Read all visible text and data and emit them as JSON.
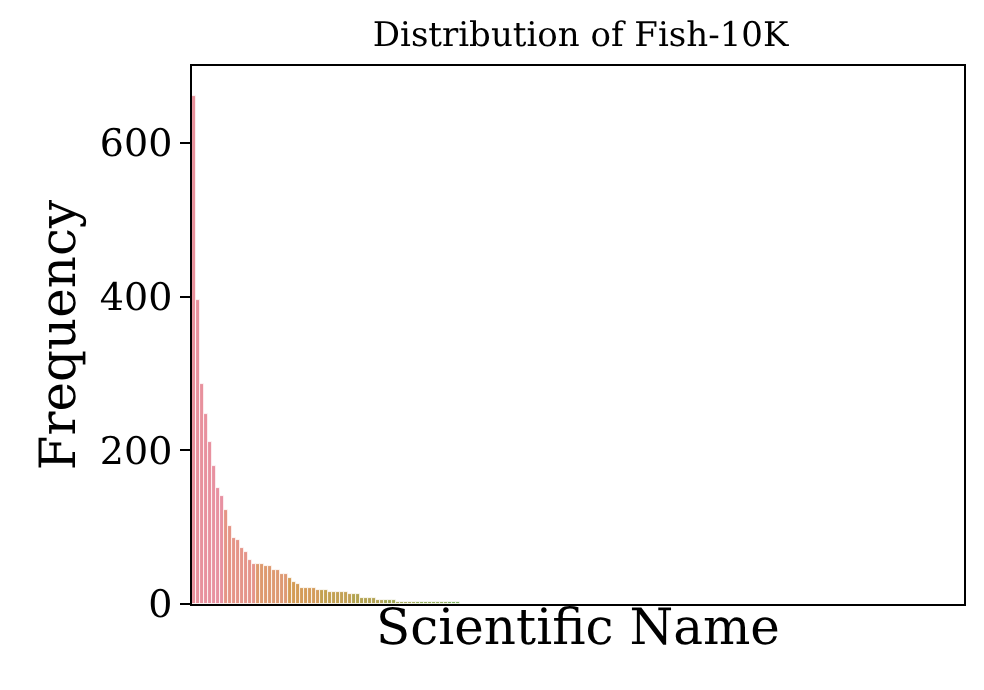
{
  "chart_data": {
    "type": "bar",
    "title": "Distribution of Fish-10K",
    "xlabel": "Scientific Name",
    "ylabel": "Frequency",
    "categories": [
      null,
      null,
      null,
      null,
      null,
      null,
      null,
      null,
      null,
      null,
      null,
      null,
      null,
      null,
      null,
      null,
      null,
      null,
      null,
      null,
      null,
      null,
      null,
      null,
      null,
      null,
      null,
      null,
      null,
      null,
      null,
      null,
      null,
      null,
      null,
      null,
      null,
      null,
      null,
      null,
      null,
      null,
      null,
      null,
      null,
      null,
      null,
      null,
      null,
      null,
      null,
      null,
      null,
      null,
      null,
      null,
      null,
      null,
      null,
      null,
      null,
      null,
      null,
      null,
      null,
      null,
      null,
      null,
      null,
      null,
      null,
      null,
      null,
      null,
      null,
      null,
      null,
      null,
      null,
      null,
      null,
      null,
      null,
      null,
      null,
      null,
      null,
      null,
      null,
      null,
      null,
      null,
      null,
      null,
      null,
      null,
      null,
      null,
      null,
      null,
      null,
      null,
      null,
      null,
      null,
      null,
      null,
      null,
      null,
      null,
      null,
      null,
      null,
      null,
      null,
      null,
      null,
      null,
      null,
      null,
      null,
      null,
      null,
      null,
      null,
      null,
      null,
      null,
      null,
      null,
      null,
      null,
      null,
      null,
      null,
      null,
      null,
      null,
      null,
      null,
      null,
      null,
      null,
      null,
      null,
      null,
      null,
      null,
      null,
      null,
      null,
      null,
      null,
      null,
      null,
      null,
      null,
      null,
      null,
      null,
      null,
      null,
      null,
      null,
      null,
      null,
      null,
      null,
      null,
      null,
      null,
      null,
      null,
      null,
      null,
      null,
      null,
      null,
      null,
      null,
      null,
      null,
      null,
      null,
      null,
      null,
      null,
      null,
      null,
      null,
      null,
      null,
      null
    ],
    "values": [
      662,
      395,
      287,
      248,
      212,
      179,
      150,
      140,
      122,
      101,
      85,
      83,
      73,
      68,
      57,
      52,
      52,
      52,
      49,
      49,
      43,
      43,
      40,
      40,
      35,
      29,
      26,
      22,
      22,
      22,
      22,
      19,
      19,
      19,
      16,
      16,
      15,
      15,
      15,
      12,
      12,
      12,
      9,
      9,
      9,
      9,
      6,
      6,
      6,
      6,
      6,
      3,
      3,
      3,
      3,
      3,
      3,
      3,
      3,
      3,
      3,
      3,
      3,
      3,
      3,
      3,
      3,
      0,
      0,
      0,
      0,
      0,
      0,
      0,
      0,
      0,
      0,
      0,
      0,
      0,
      0,
      0,
      0,
      0,
      0,
      0,
      0,
      0,
      0,
      0,
      0,
      0,
      0,
      0,
      0,
      0,
      0,
      0,
      0,
      0,
      0,
      0,
      0,
      0,
      0,
      0,
      0,
      0,
      0,
      0,
      0,
      0,
      0,
      0,
      0,
      0,
      0,
      0,
      0,
      0,
      0,
      0,
      0,
      0,
      0,
      0,
      0,
      0,
      0,
      0,
      0,
      0,
      0,
      0,
      0,
      0,
      0,
      0,
      0,
      0,
      0,
      0,
      0,
      0,
      0,
      0,
      0,
      0,
      0,
      0,
      0,
      0,
      0,
      0,
      0,
      0,
      0,
      0,
      0,
      0,
      0,
      0,
      0,
      0,
      0,
      0,
      0,
      0,
      0,
      0,
      0,
      0,
      0,
      0,
      0,
      0,
      0,
      0,
      0,
      0,
      0,
      0,
      0,
      0,
      0,
      0,
      0,
      0,
      0,
      0,
      0,
      0,
      0
    ],
    "colors": [
      "#e8919b",
      "#e8919c",
      "#e8919d",
      "#e8919e",
      "#e8919f",
      "#e891a0",
      "#e891a1",
      "#e891a2",
      "#e59585",
      "#e59586",
      "#e59587",
      "#e59588",
      "#e59589",
      "#e5958a",
      "#e5958b",
      "#e5958c",
      "#de9a6e",
      "#de9a6f",
      "#de9a70",
      "#de9a71",
      "#de9a72",
      "#de9a73",
      "#de9a74",
      "#de9a75",
      "#d49c55",
      "#d49c56",
      "#d49c57",
      "#d49c58",
      "#d49c59",
      "#d49c5a",
      "#d49c5b",
      "#d49c5c",
      "#c3a150",
      "#c3a151",
      "#c3a152",
      "#c3a153",
      "#c3a154",
      "#c3a155",
      "#c3a156",
      "#c3a157",
      "#b3a34f",
      "#b3a350",
      "#b3a351",
      "#b3a352",
      "#b3a353",
      "#b3a354",
      "#b3a355",
      "#b3a356",
      "#a2a64f",
      "#a2a650",
      "#a2a651",
      "#a2a652",
      "#a2a653",
      "#a2a654",
      "#a2a655",
      "#a2a656",
      "#8ea94f",
      "#8ea950",
      "#8ea951",
      "#8ea952",
      "#8ea953",
      "#8ea954",
      "#8ea955",
      "#8ea956",
      "#74ab54",
      "#74ab55",
      "#74ab56",
      "#74ab57",
      "#74ab58",
      "#74ab59",
      "#74ab5a",
      "#74ab5b",
      "#58ad6b",
      "#58ad6c",
      "#58ad6d",
      "#58ad6e",
      "#58ad6f",
      "#58ad70",
      "#58ad71",
      "#58ad72",
      "#55ac86",
      "#55ac87",
      "#55ac88",
      "#55ac89",
      "#55ac8a",
      "#55ac8b",
      "#55ac8c",
      "#55ac8d",
      "#56ab98",
      "#56ab99",
      "#56ab9a",
      "#56ab9b",
      "#56ab9c",
      "#56ab9d",
      "#56ab9e",
      "#56ab9f",
      "#57aaa6",
      "#57aaa7",
      "#57aaa8",
      "#57aaa9",
      "#57aaaa",
      "#57aaab",
      "#57aaac",
      "#57aaad",
      "#58a9b4",
      "#58a9b5",
      "#58a9b6",
      "#58a9b7",
      "#58a9b8",
      "#58a9b9",
      "#58a9ba",
      "#58a9bb",
      "#5ba6c5",
      "#5ba6c6",
      "#5ba6c7",
      "#5ba6c8",
      "#5ba6c9",
      "#5ba6ca",
      "#5ba6cb",
      "#5ba6cc",
      "#67a1d8",
      "#67a1d9",
      "#67a1da",
      "#67a1db",
      "#67a1dc",
      "#67a1dd",
      "#67a1de",
      "#67a1df",
      "#8499df",
      "#8499e0",
      "#8499e1",
      "#8499e2",
      "#8499e3",
      "#8499e4",
      "#8499e5",
      "#8499e6",
      "#a393e0",
      "#a393e1",
      "#a393e2",
      "#a393e3",
      "#a393e4",
      "#a393e5",
      "#a393e6",
      "#a393e7",
      "#bb8de0",
      "#bb8de1",
      "#bb8de2",
      "#bb8de3",
      "#bb8de4",
      "#bb8de5",
      "#bb8de6",
      "#bb8de7",
      "#d189dc",
      "#d189dd",
      "#d189de",
      "#d189df",
      "#d189e0",
      "#d189e1",
      "#d189e2",
      "#d189e3",
      "#df88ca",
      "#df88cb",
      "#df88cc",
      "#df88cd",
      "#df88ce",
      "#df88cf",
      "#df88d0",
      "#df88d1",
      "#e68cb8",
      "#e68cb9",
      "#e68cba",
      "#e68cbb",
      "#e68cbc",
      "#e68cbd",
      "#e68cbe",
      "#e68cbf",
      "#e98fa9",
      "#e98faa",
      "#e98fab",
      "#e98fac",
      "#e98fad",
      "#e98fae",
      "#e98faf",
      "#e98fb0",
      "#e8929b",
      "#e8929c",
      "#e8929d",
      "#e8929e",
      "#e8929f",
      "#e892a0",
      "#e892a1",
      "#e892a2",
      "#e892a3"
    ],
    "ylim": [
      0,
      700
    ],
    "yticks": [
      0,
      200,
      400,
      600
    ],
    "grid": false,
    "tick_labels": "y"
  }
}
